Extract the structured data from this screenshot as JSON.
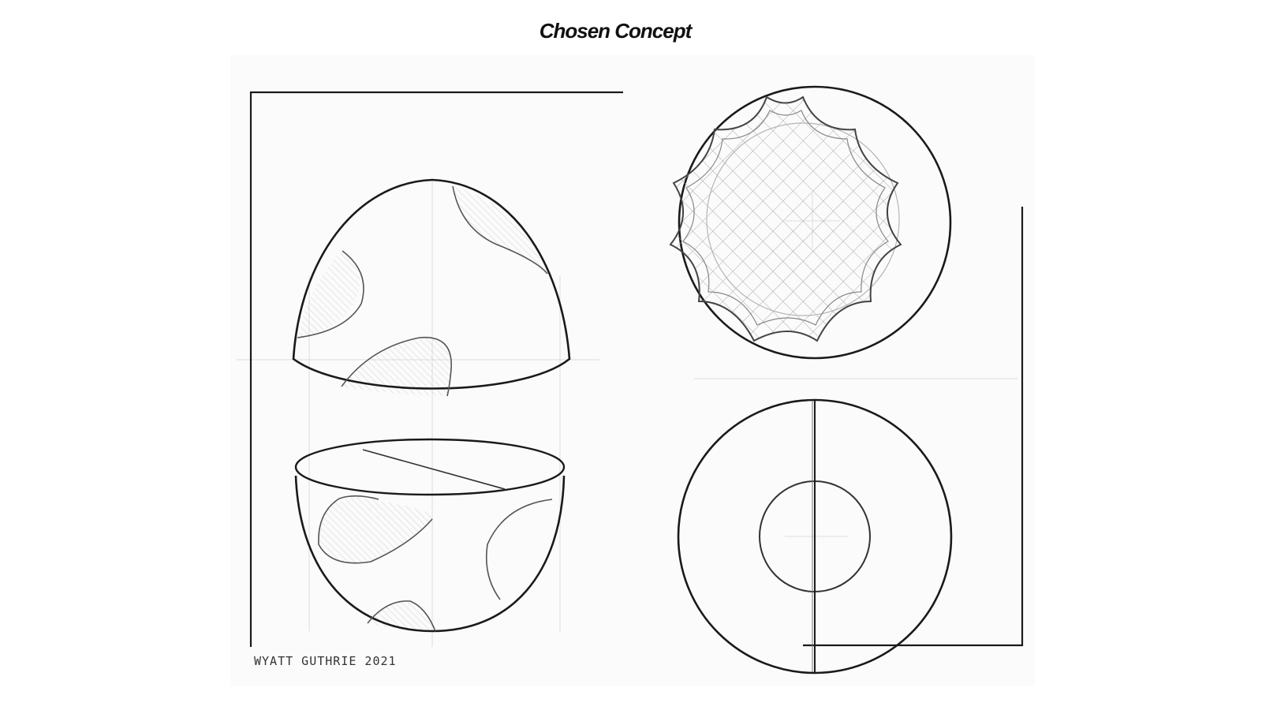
{
  "header": {
    "title": "Chosen Concept"
  },
  "drawing": {
    "medium": "pencil sketch on paper",
    "views": [
      "upper-shell-side-view",
      "lower-shell-side-view",
      "top-view-star-pattern",
      "bottom-view-concentric"
    ],
    "signature": "WYATT GUTHRIE 2021"
  },
  "colors": {
    "background": "#ffffff",
    "pencil": "#1a1a1a",
    "paper": "#fbfbfb"
  }
}
